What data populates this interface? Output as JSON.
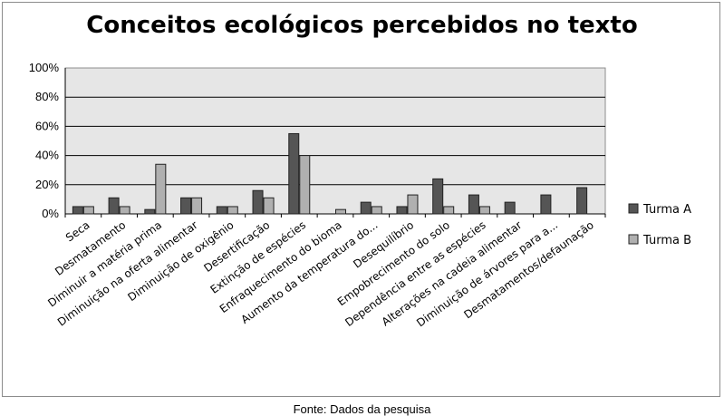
{
  "chart_data": {
    "type": "bar",
    "title": "Conceitos ecológicos percebidos no texto",
    "xlabel": "",
    "ylabel": "",
    "ylim": [
      0,
      100
    ],
    "yticks": [
      "0%",
      "20%",
      "40%",
      "60%",
      "80%",
      "100%"
    ],
    "grid": true,
    "legend_position": "right",
    "categories": [
      "Seca",
      "Desmatamento",
      "Diminuir a matéria prima",
      "Diminuição na oferta alimentar",
      "Diminuição de oxigênio",
      "Desertificação",
      "Extinção de espécies",
      "Enfraquecimento do bioma",
      "Aumento da temperatura do...",
      "Desequilíbrio",
      "Empobrecimento do solo",
      "Dependência entre as espécies",
      "Alterações na cadeia alimentar",
      "Diminuição de árvores para a...",
      "Desmatamentos/defaunação"
    ],
    "series": [
      {
        "name": "Turma A",
        "color": "#555555",
        "values": [
          5,
          11,
          3,
          11,
          5,
          16,
          55,
          0,
          8,
          5,
          24,
          13,
          8,
          13,
          18
        ]
      },
      {
        "name": "Turma B",
        "color": "#b0b0b0",
        "values": [
          5,
          5,
          34,
          11,
          5,
          11,
          40,
          3,
          5,
          13,
          5,
          5,
          0,
          0,
          0
        ]
      }
    ]
  },
  "source_note": "Fonte: Dados da pesquisa"
}
